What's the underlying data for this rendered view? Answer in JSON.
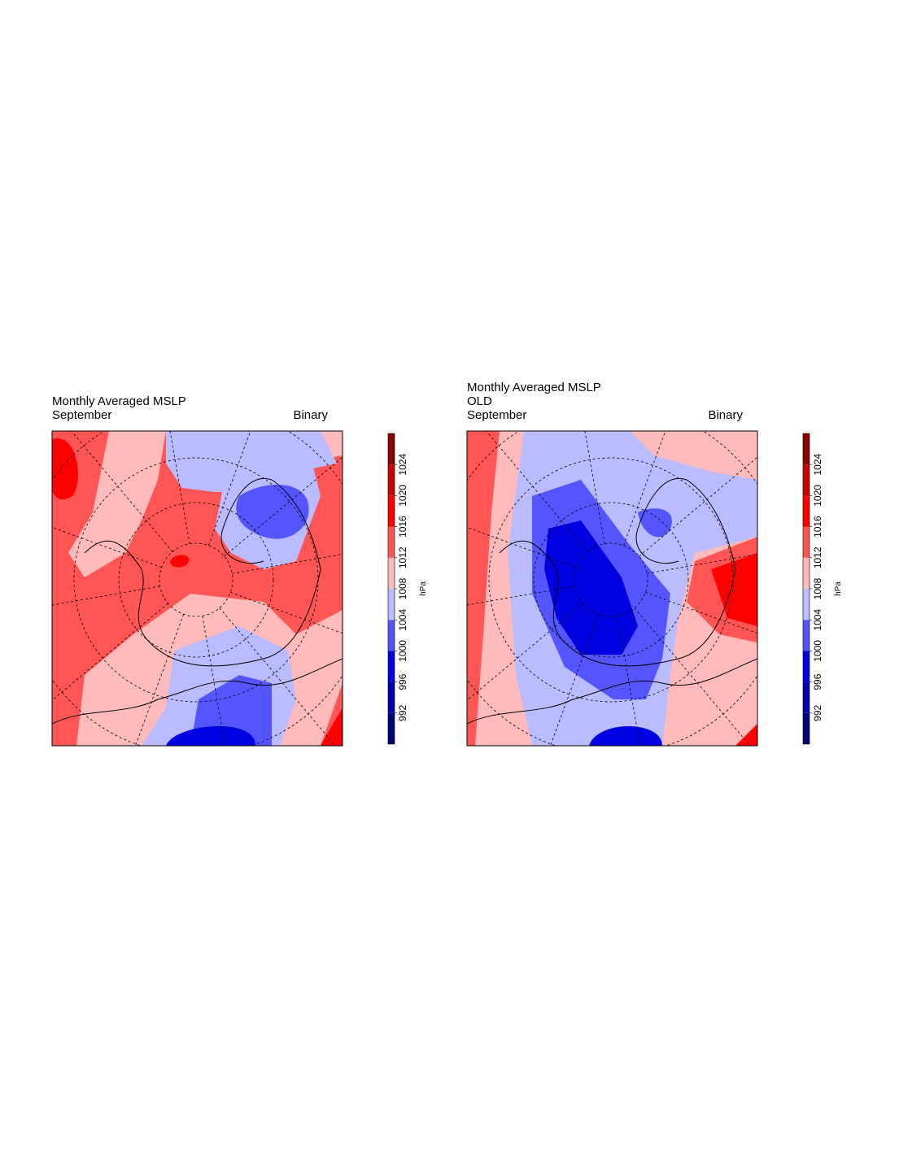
{
  "panels": [
    {
      "title_lines": [
        "Monthly Averaged MSLP",
        "September"
      ],
      "right_label": "Binary"
    },
    {
      "title_lines": [
        "Monthly Averaged MSLP",
        "OLD",
        "September"
      ],
      "right_label": "Binary"
    }
  ],
  "colorbar": {
    "label": "hPa",
    "lim": [
      988,
      1028
    ],
    "ticks": [
      992,
      996,
      1000,
      1004,
      1008,
      1012,
      1016,
      1020,
      1024
    ],
    "colors": [
      "#00007f",
      "#0000b0",
      "#0000e0",
      "#5555ff",
      "#bbbbff",
      "#ffbbbb",
      "#ff5555",
      "#ff0000",
      "#c80000",
      "#8c0000"
    ]
  }
}
